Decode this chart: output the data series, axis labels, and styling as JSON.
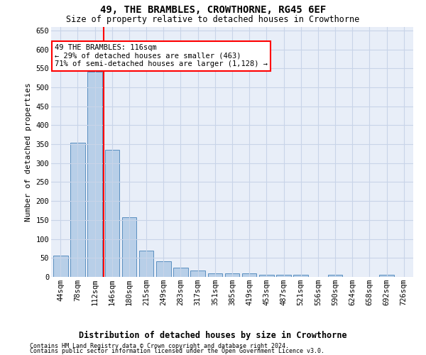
{
  "title": "49, THE BRAMBLES, CROWTHORNE, RG45 6EF",
  "subtitle": "Size of property relative to detached houses in Crowthorne",
  "xlabel_bottom": "Distribution of detached houses by size in Crowthorne",
  "ylabel": "Number of detached properties",
  "footer1": "Contains HM Land Registry data © Crown copyright and database right 2024.",
  "footer2": "Contains public sector information licensed under the Open Government Licence v3.0.",
  "annotation_line1": "49 THE BRAMBLES: 116sqm",
  "annotation_line2": "← 29% of detached houses are smaller (463)",
  "annotation_line3": "71% of semi-detached houses are larger (1,128) →",
  "bar_color": "#b8cfe8",
  "bar_edge_color": "#5a8fc0",
  "vline_color": "red",
  "vline_x": 2.5,
  "categories": [
    "44sqm",
    "78sqm",
    "112sqm",
    "146sqm",
    "180sqm",
    "215sqm",
    "249sqm",
    "283sqm",
    "317sqm",
    "351sqm",
    "385sqm",
    "419sqm",
    "453sqm",
    "487sqm",
    "521sqm",
    "556sqm",
    "590sqm",
    "624sqm",
    "658sqm",
    "692sqm",
    "726sqm"
  ],
  "values": [
    57,
    353,
    541,
    336,
    157,
    70,
    42,
    25,
    17,
    10,
    9,
    10,
    5,
    5,
    5,
    0,
    5,
    0,
    0,
    5,
    0
  ],
  "ylim": [
    0,
    660
  ],
  "yticks": [
    0,
    50,
    100,
    150,
    200,
    250,
    300,
    350,
    400,
    450,
    500,
    550,
    600,
    650
  ],
  "grid_color": "#c8d4e8",
  "background_color": "#ffffff",
  "plot_bg_color": "#e8eef8",
  "figsize": [
    6.0,
    5.0
  ],
  "dpi": 100,
  "title_fontsize": 10,
  "subtitle_fontsize": 8.5,
  "ylabel_fontsize": 8,
  "tick_fontsize": 7.5,
  "annotation_fontsize": 7.5,
  "footer_fontsize": 6
}
